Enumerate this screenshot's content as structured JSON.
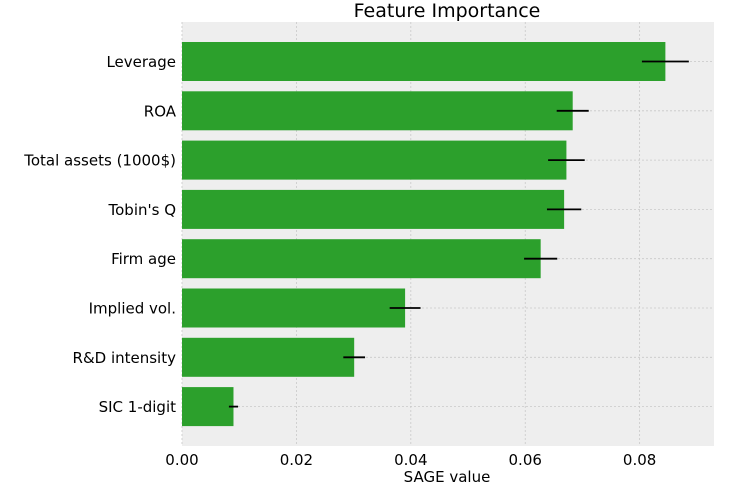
{
  "chart_data": {
    "type": "bar",
    "orientation": "horizontal",
    "title": "Feature Importance",
    "xlabel": "SAGE value",
    "ylabel": "",
    "xlim": [
      0.0,
      0.093
    ],
    "xticks": [
      0.0,
      0.02,
      0.04,
      0.06,
      0.08
    ],
    "xtick_labels": [
      "0.00",
      "0.02",
      "0.04",
      "0.06",
      "0.08"
    ],
    "categories": [
      "Leverage",
      "ROA",
      "Total assets (1000$)",
      "Tobin's Q",
      "Firm age",
      "Implied vol.",
      "R&D intensity",
      "SIC 1-digit"
    ],
    "values": [
      0.0845,
      0.0683,
      0.0672,
      0.0668,
      0.0627,
      0.039,
      0.0301,
      0.009
    ],
    "errors": [
      0.0041,
      0.0028,
      0.0032,
      0.003,
      0.0029,
      0.0027,
      0.0019,
      0.0008
    ],
    "bar_color": "#2ca02c",
    "errorbar_color": "#000000",
    "background_color": "#eeeeee",
    "grid": true,
    "legend": "none"
  }
}
